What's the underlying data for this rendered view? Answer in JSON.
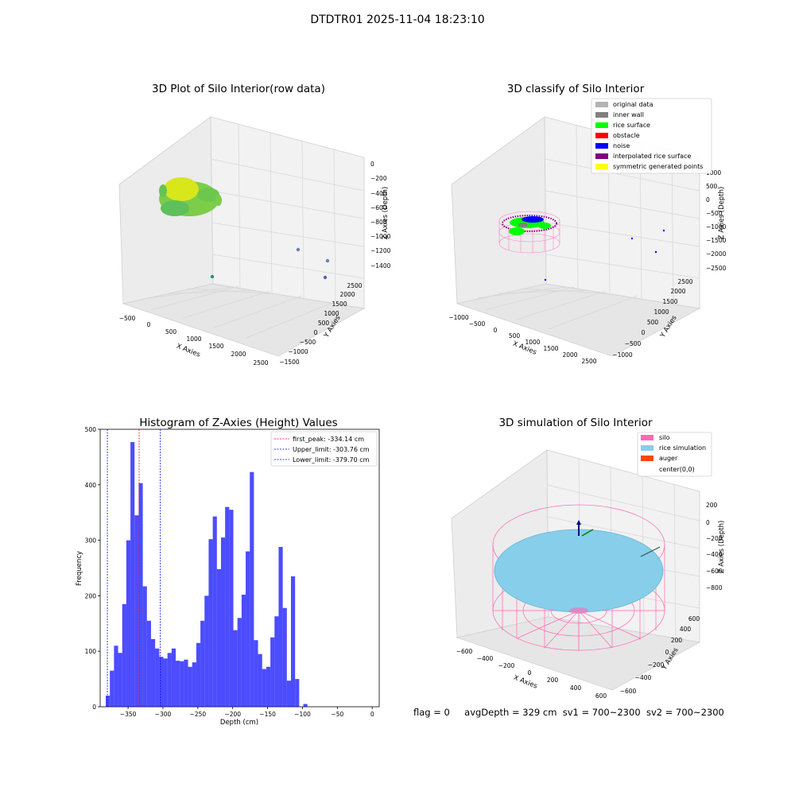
{
  "figure": {
    "suptitle": "DTDTR01 2025-11-04 18:23:10",
    "footer": {
      "flag": "flag = 0",
      "avg_depth": "avgDepth = 329 cm",
      "sv1": "sv1 = 700~2300",
      "sv2": "sv2 = 700~2300"
    }
  },
  "panels": {
    "raw": {
      "title": "3D Plot of Silo Interior(row data)",
      "xlabel": "X Axies",
      "ylabel": "Y Axies",
      "zlabel": "Z Axies (Depth)",
      "xticks": [
        "−500",
        "0",
        "500",
        "1000",
        "1500",
        "2000",
        "2500"
      ],
      "yticks": [
        "−1500",
        "−1000",
        "−500",
        "0",
        "500",
        "1000",
        "1500",
        "2000",
        "2500"
      ],
      "zticks": [
        "0",
        "−200",
        "−400",
        "−600",
        "−800",
        "−1000",
        "−1200",
        "−1400"
      ]
    },
    "classify": {
      "title": "3D classify of Silo Interior",
      "xlabel": "X Axies",
      "ylabel": "Y Axies",
      "zlabel": "Z Axies (Depth)",
      "xticks": [
        "−1000",
        "−500",
        "0",
        "500",
        "1000",
        "1500",
        "2000",
        "2500"
      ],
      "yticks": [
        "−1000",
        "−500",
        "0",
        "500",
        "1000",
        "1500",
        "2000",
        "2500"
      ],
      "zticks": [
        "1000",
        "500",
        "0",
        "−500",
        "−1000",
        "−1500",
        "−2000",
        "−2500"
      ],
      "legend": [
        {
          "label": "original data",
          "color": "#b3b3b3"
        },
        {
          "label": "inner wall",
          "color": "#808080"
        },
        {
          "label": "rice surface",
          "color": "#00ff00"
        },
        {
          "label": "obstacle",
          "color": "#ff0000"
        },
        {
          "label": "noise",
          "color": "#0000ff"
        },
        {
          "label": "interpolated rice surface",
          "color": "#800080"
        },
        {
          "label": "symmetric generated points",
          "color": "#ffff00"
        }
      ]
    },
    "simulation": {
      "title": "3D simulation of Silo Interior",
      "xlabel": "X Axies",
      "ylabel": "Y Axies",
      "zlabel": "Z Axies (Depth)",
      "xticks": [
        "−600",
        "−400",
        "−200",
        "0",
        "200",
        "400",
        "600"
      ],
      "yticks": [
        "−600",
        "−400",
        "−200",
        "0",
        "200",
        "400",
        "600"
      ],
      "zticks": [
        "200",
        "0",
        "−200",
        "−400",
        "−600",
        "−800"
      ],
      "legend": [
        {
          "label": "silo",
          "color": "#ff69b4"
        },
        {
          "label": "rice simulation",
          "color": "#87ceeb"
        },
        {
          "label": "auger",
          "color": "#ff4500"
        },
        {
          "label": "center(0,0)",
          "color": ""
        }
      ]
    }
  },
  "chart_data": {
    "type": "bar",
    "title": "Histogram of Z-Axies (Height) Values",
    "xlabel": "Depth (cm)",
    "ylabel": "Frequency",
    "xlim": [
      -390,
      10
    ],
    "ylim": [
      0,
      500
    ],
    "xticks": [
      -350,
      -300,
      -250,
      -200,
      -150,
      -100,
      -50,
      0
    ],
    "yticks": [
      0,
      100,
      200,
      300,
      400,
      500
    ],
    "bar_color": "#0000ff",
    "bin_start": -382,
    "bin_width": 5.9,
    "values": [
      20,
      65,
      110,
      97,
      185,
      300,
      477,
      345,
      403,
      217,
      155,
      122,
      105,
      90,
      87,
      97,
      105,
      83,
      82,
      85,
      72,
      80,
      115,
      155,
      200,
      302,
      343,
      248,
      305,
      360,
      355,
      138,
      160,
      202,
      280,
      423,
      120,
      95,
      68,
      72,
      125,
      163,
      288,
      178,
      47,
      235,
      50,
      0,
      5
    ],
    "vlines": [
      {
        "label": "first_peak: -334.14 cm",
        "x": -334.14,
        "color": "#ff0000"
      },
      {
        "label": "Upper_limit: -303.76 cm",
        "x": -303.76,
        "color": "#0000ff"
      },
      {
        "label": "Lower_limit: -379.70 cm",
        "x": -379.7,
        "color": "#0000ff"
      }
    ],
    "legend_position": "upper right"
  }
}
